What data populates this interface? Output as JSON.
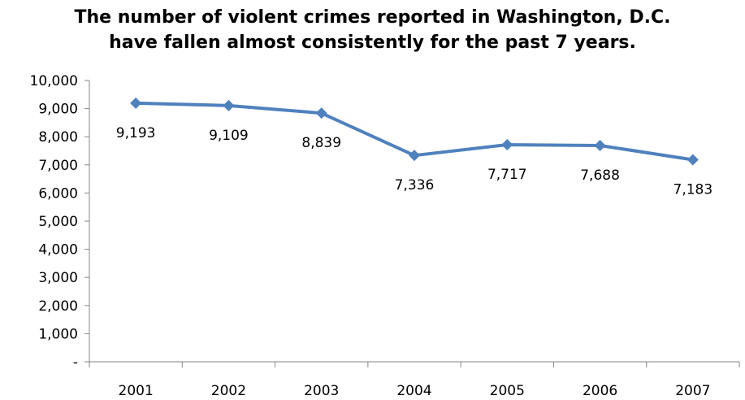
{
  "chart_data": {
    "type": "line",
    "title_lines": [
      "The number of violent crimes reported in Washington, D.C.",
      "have fallen almost consistently for the past 7 years."
    ],
    "categories": [
      "2001",
      "2002",
      "2003",
      "2004",
      "2005",
      "2006",
      "2007"
    ],
    "series": [
      {
        "values": [
          9193,
          9109,
          8839,
          7336,
          7717,
          7688,
          7183
        ],
        "data_labels": [
          "9,193",
          "9,109",
          "8,839",
          "7,336",
          "7,717",
          "7,688",
          "7,183"
        ],
        "color": "#4F81BD",
        "marker": "diamond"
      }
    ],
    "ylim": [
      0,
      10000
    ],
    "y_ticks": [
      0,
      1000,
      2000,
      3000,
      4000,
      5000,
      6000,
      7000,
      8000,
      9000,
      10000
    ],
    "y_tick_labels": [
      "-",
      "1,000",
      "2,000",
      "3,000",
      "4,000",
      "5,000",
      "6,000",
      "7,000",
      "8,000",
      "9,000",
      "10,000"
    ],
    "grid": false,
    "legend": "none",
    "axis_color": "#868686"
  }
}
